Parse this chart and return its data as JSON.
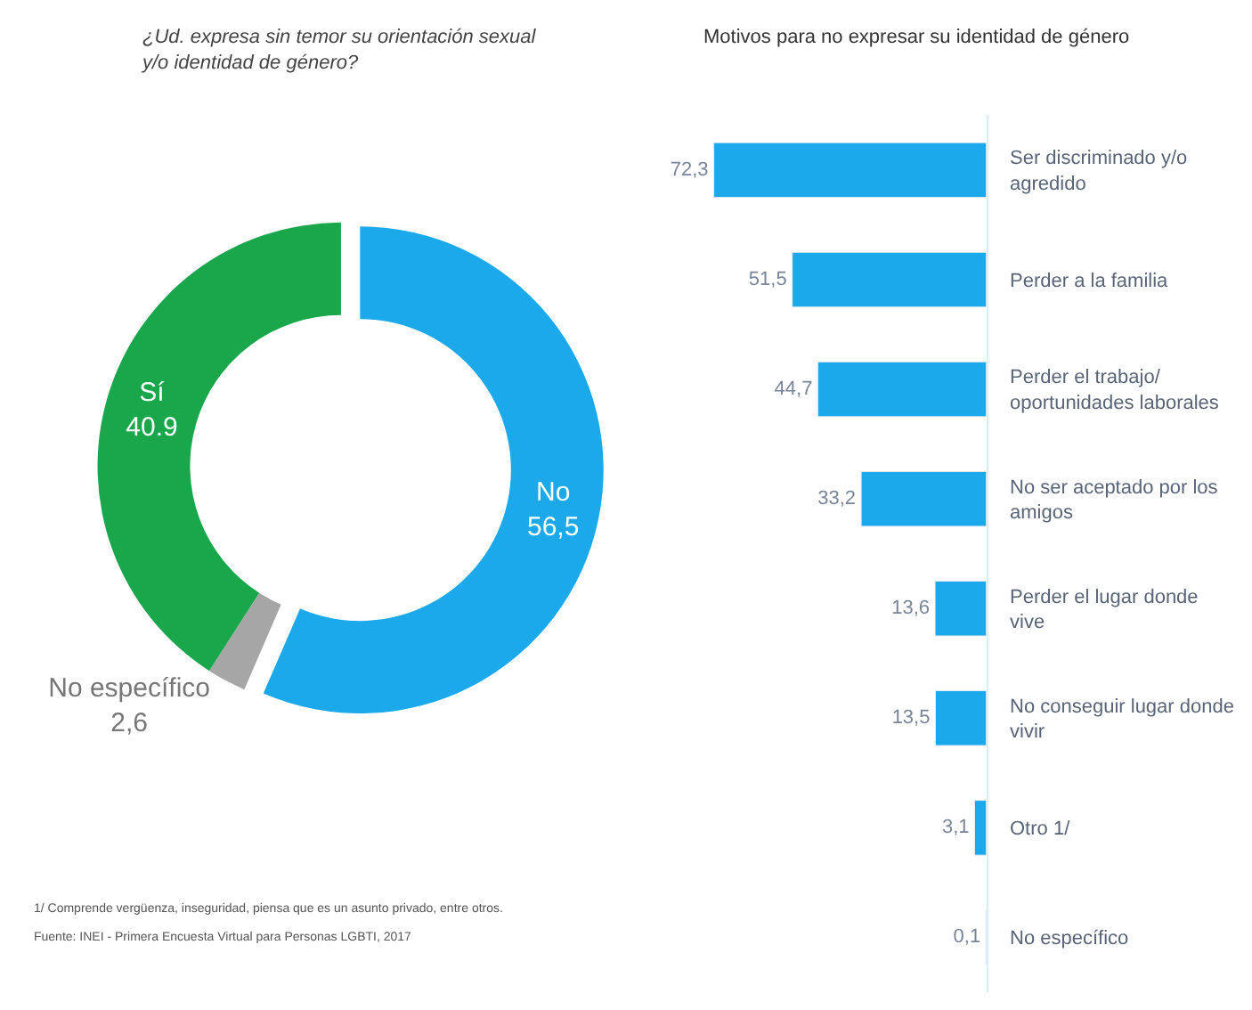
{
  "chart_data": [
    {
      "type": "donut",
      "title": "¿Ud. expresa sin temor su orientación sexual y/o identidad de género?",
      "categories": [
        "No",
        "No específico",
        "Sí"
      ],
      "values": [
        56.5,
        2.6,
        40.9
      ],
      "value_labels": [
        "56,5",
        "2,6",
        "40.9"
      ],
      "colors": [
        "#1ba9ec",
        "#a6a6a6",
        "#1aa64b"
      ]
    },
    {
      "type": "bar",
      "orientation": "horizontal",
      "title": "Motivos para no expresar su identidad de género",
      "categories": [
        "Ser discriminado y/o agredido",
        "Perder a la familia",
        "Perder el trabajo/ oportunidades laborales",
        "No ser aceptado por los amigos",
        "Perder el lugar donde vive",
        "No conseguir lugar donde vivir",
        "Otro 1/",
        "No específico"
      ],
      "values": [
        72.3,
        51.5,
        44.7,
        33.2,
        13.6,
        13.5,
        3.1,
        0.1
      ],
      "value_labels": [
        "72,3",
        "51,5",
        "44,7",
        "33,2",
        "13,6",
        "13,5",
        "3,1",
        "0,1"
      ],
      "color": "#1ba9ec",
      "annotations": [
        "1/ Comprende vergüenza, inseguridad, piensa que es un asunto privado, entre otros.",
        "Fuente: INEI - Primera Encuesta Virtual para Personas LGBTI, 2017"
      ]
    }
  ]
}
